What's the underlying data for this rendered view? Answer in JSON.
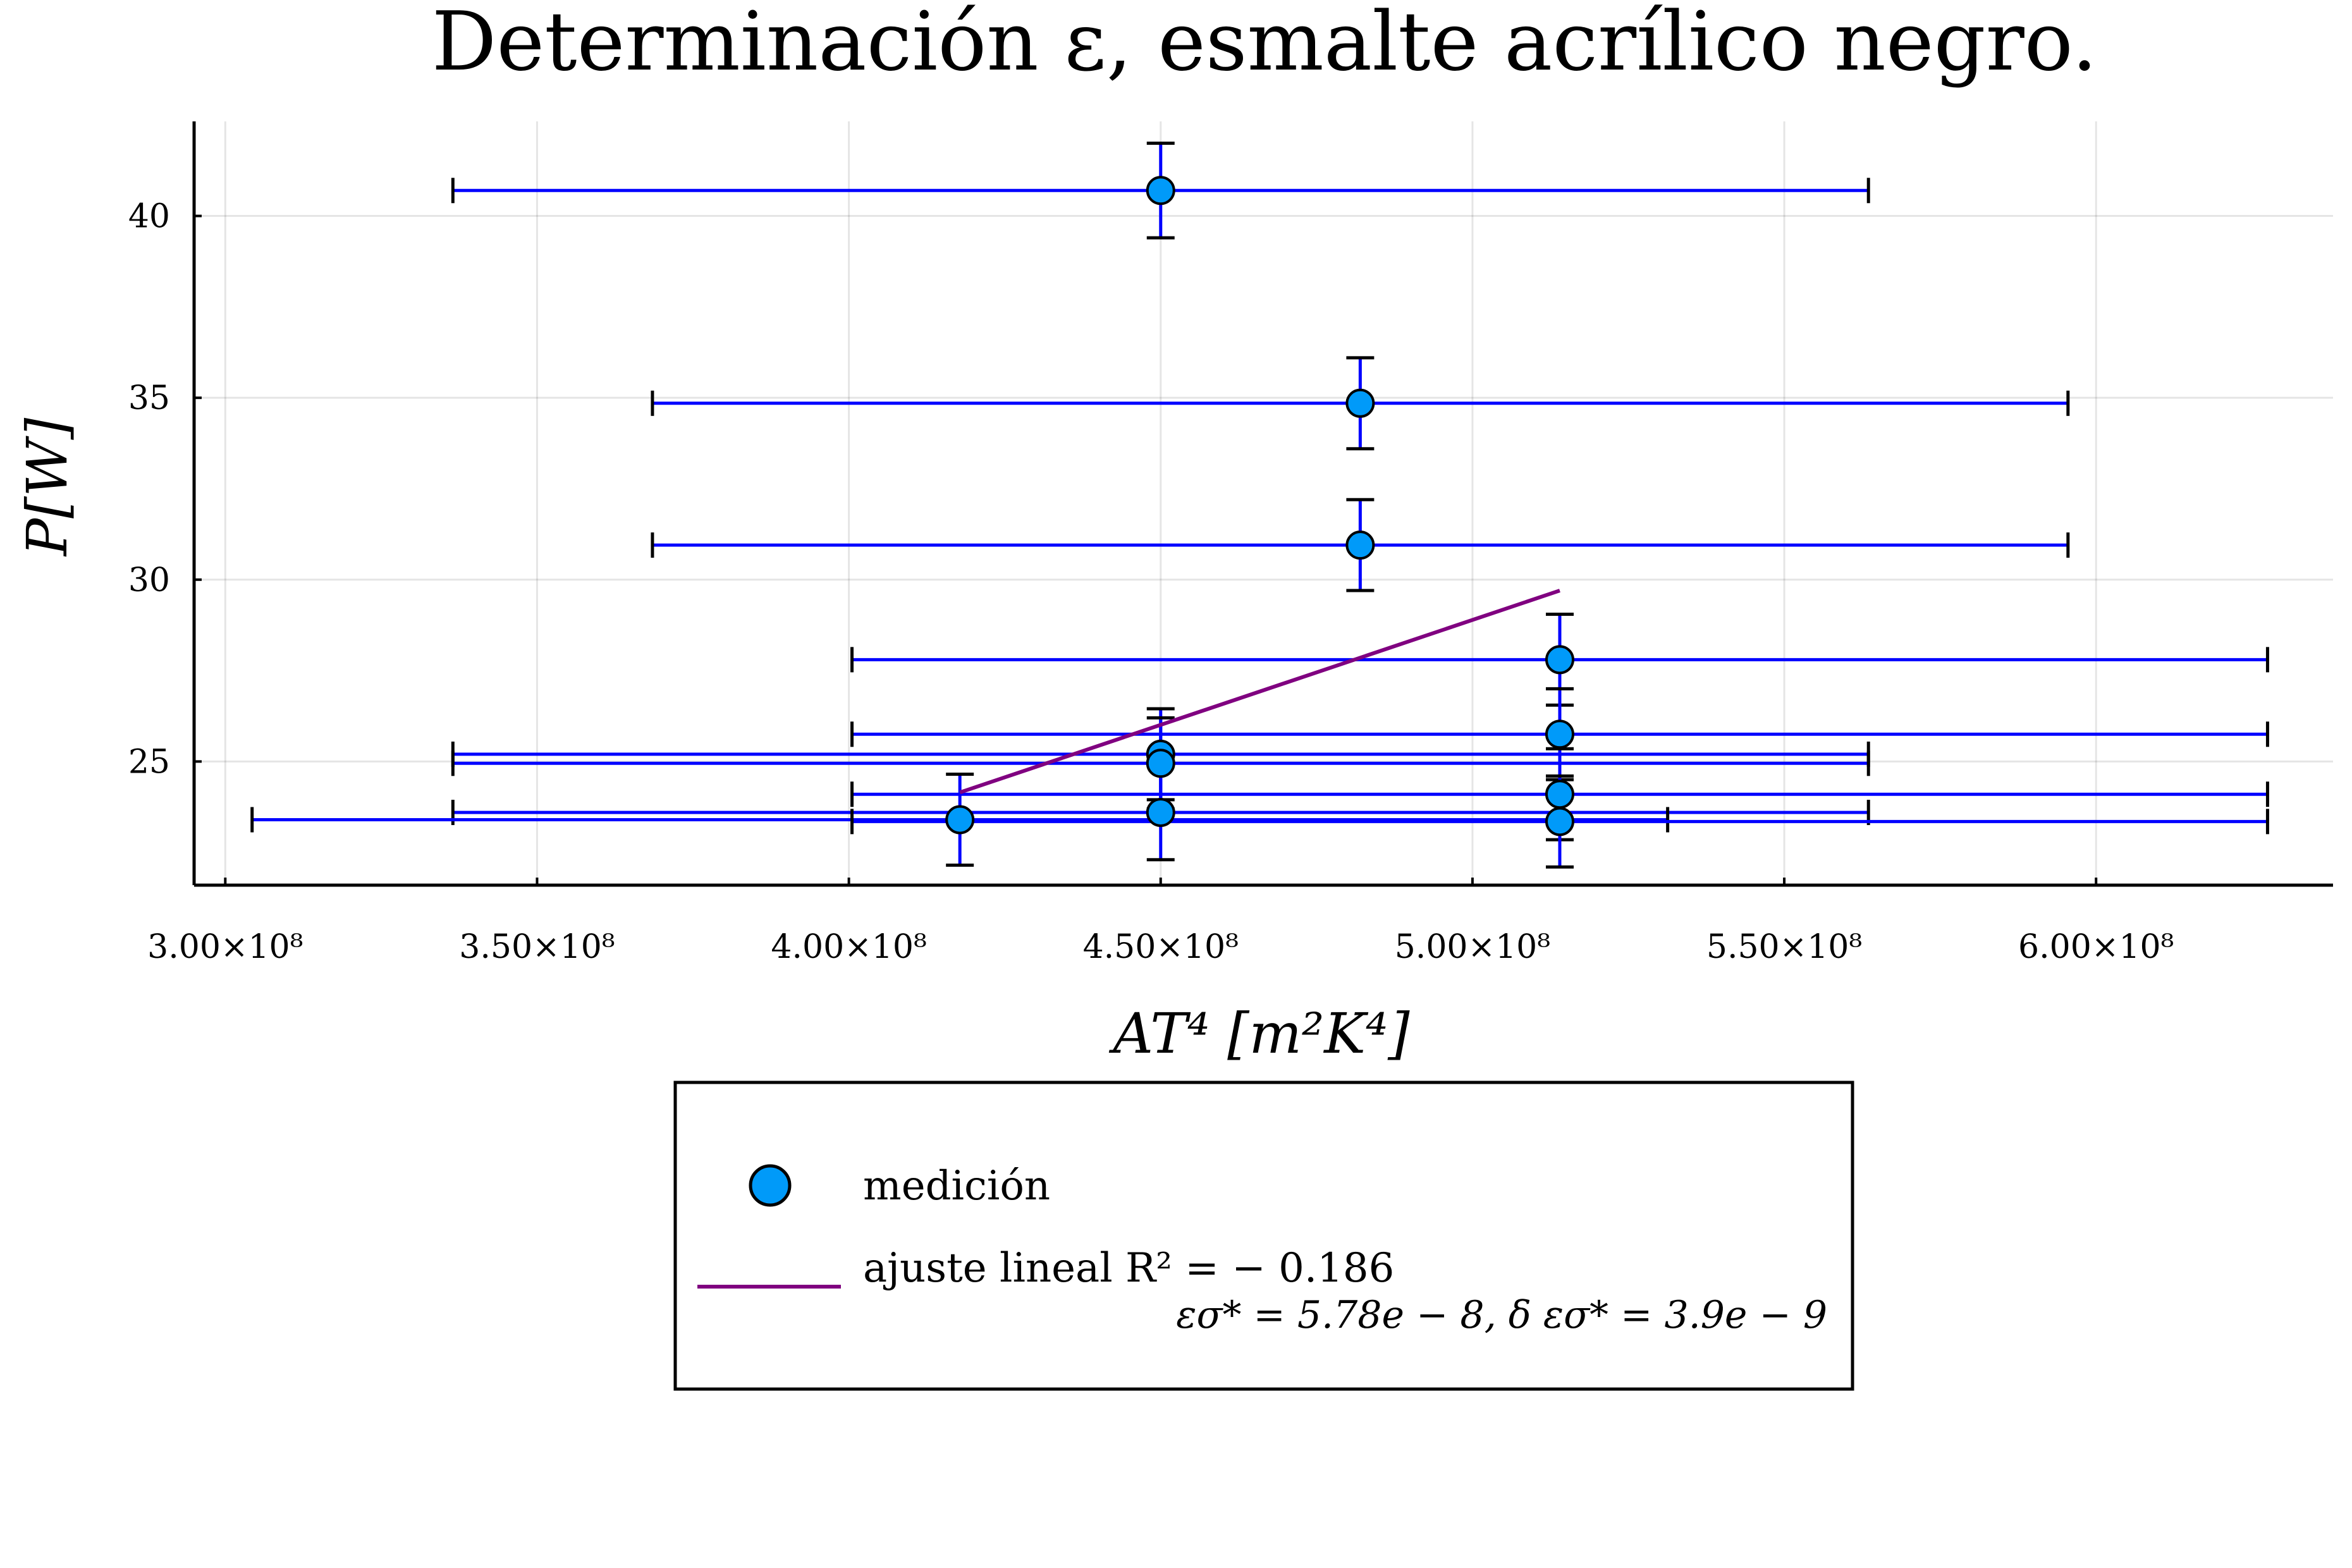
{
  "chart_data": {
    "type": "scatter",
    "title": "Determinación ε, esmalte acrílico negro.",
    "xlabel": "AT⁴ [m²K⁴]",
    "ylabel": "P[W]",
    "xlim": [
      295000000,
      638000000
    ],
    "ylim": [
      21.6,
      42.6
    ],
    "grid": true,
    "xticks": [
      300000000,
      350000000,
      400000000,
      450000000,
      500000000,
      550000000,
      600000000
    ],
    "xtick_labels": [
      "3.00×10⁸",
      "3.50×10⁸",
      "4.00×10⁸",
      "4.50×10⁸",
      "5.00×10⁸",
      "5.50×10⁸",
      "6.00×10⁸"
    ],
    "yticks": [
      25,
      30,
      35,
      40
    ],
    "ytick_labels": [
      "25",
      "30",
      "35",
      "40"
    ],
    "legend_position": "below",
    "colors": {
      "marker": "#009af9",
      "xerror": "#0000ff",
      "fit": "#800080",
      "caps": "#000000"
    },
    "series": [
      {
        "name": "medición",
        "points": [
          {
            "x": 450000000,
            "y": 40.7,
            "xerr": 113500000,
            "yerr": 1.3
          },
          {
            "x": 482000000,
            "y": 34.85,
            "xerr": 113500000,
            "yerr": 1.25
          },
          {
            "x": 482000000,
            "y": 30.95,
            "xerr": 113500000,
            "yerr": 1.25
          },
          {
            "x": 514000000,
            "y": 27.8,
            "xerr": 113500000,
            "yerr": 1.25
          },
          {
            "x": 514000000,
            "y": 25.75,
            "xerr": 113500000,
            "yerr": 1.25
          },
          {
            "x": 450000000,
            "y": 25.2,
            "xerr": 113500000,
            "yerr": 1.25
          },
          {
            "x": 450000000,
            "y": 24.95,
            "xerr": 113500000,
            "yerr": 1.25
          },
          {
            "x": 514000000,
            "y": 24.1,
            "xerr": 113500000,
            "yerr": 1.25
          },
          {
            "x": 450000000,
            "y": 23.6,
            "xerr": 113500000,
            "yerr": 1.3
          },
          {
            "x": 417800000,
            "y": 23.4,
            "xerr": 113500000,
            "yerr": 1.25
          },
          {
            "x": 514000000,
            "y": 23.35,
            "xerr": 113500000,
            "yerr": 1.25
          }
        ]
      },
      {
        "name": "ajuste lineal R² = −0.186",
        "type": "line",
        "x": [
          417800000,
          514000000
        ],
        "y": [
          24.15,
          29.7
        ]
      }
    ],
    "legend": {
      "marker_label": "medición",
      "fit_label_line1": "ajuste lineal R² = − 0.186",
      "fit_label_line2": "εσ* = 5.78e − 8,  δ εσ* = 3.9e − 9"
    }
  }
}
